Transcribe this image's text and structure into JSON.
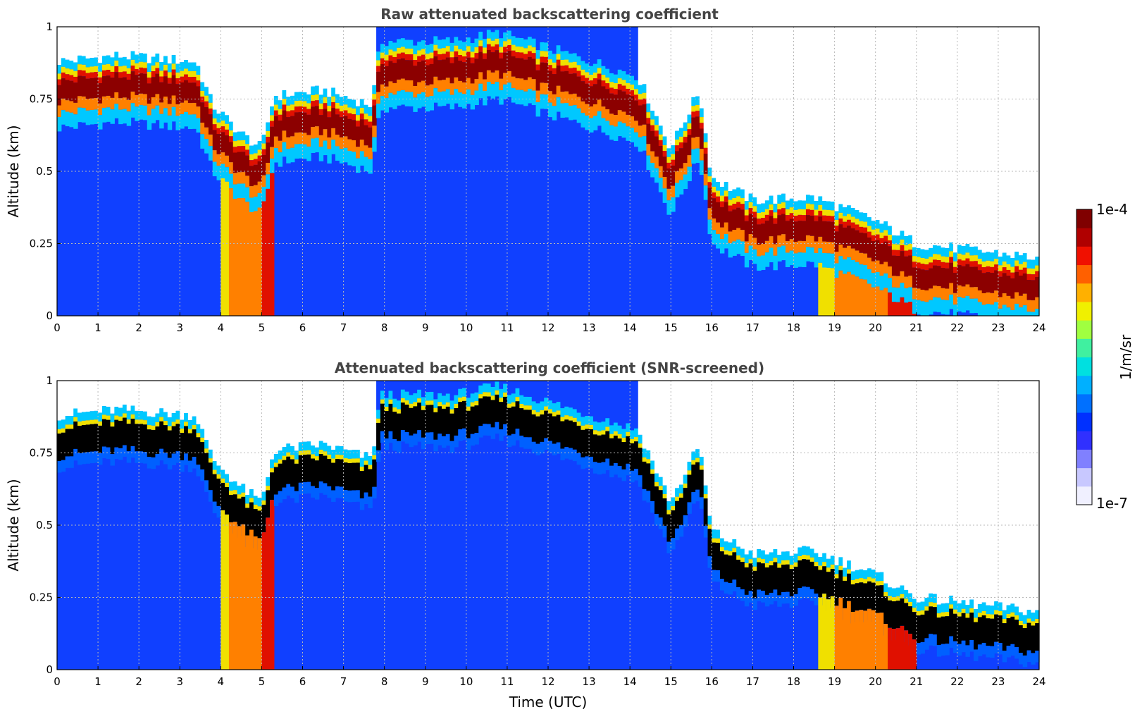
{
  "chart_data": [
    {
      "type": "heatmap",
      "title": "Raw attenuated backscattering coefficient",
      "xlabel": "",
      "ylabel": "Altitude (km)",
      "xlim": [
        0,
        24
      ],
      "ylim": [
        0,
        1
      ],
      "x_ticks": [
        0,
        1,
        2,
        3,
        4,
        5,
        6,
        7,
        8,
        9,
        10,
        11,
        12,
        13,
        14,
        15,
        16,
        17,
        18,
        19,
        20,
        21,
        22,
        23,
        24
      ],
      "y_ticks": [
        0,
        0.25,
        0.5,
        0.75,
        1
      ],
      "y_tick_labels": [
        "0",
        "0.25",
        "0.5",
        "0.75",
        "1"
      ],
      "grid": true,
      "log_color_scale": true,
      "layer_top_km": [
        {
          "x": 0.0,
          "y": 0.85
        },
        {
          "x": 1.5,
          "y": 0.87
        },
        {
          "x": 3.4,
          "y": 0.85
        },
        {
          "x": 3.8,
          "y": 0.7
        },
        {
          "x": 4.5,
          "y": 0.6
        },
        {
          "x": 5.0,
          "y": 0.55
        },
        {
          "x": 5.3,
          "y": 0.73
        },
        {
          "x": 6.5,
          "y": 0.75
        },
        {
          "x": 7.7,
          "y": 0.7
        },
        {
          "x": 7.9,
          "y": 0.92
        },
        {
          "x": 9.7,
          "y": 0.92
        },
        {
          "x": 10.8,
          "y": 0.95
        },
        {
          "x": 14.2,
          "y": 0.8
        },
        {
          "x": 15.0,
          "y": 0.55
        },
        {
          "x": 15.7,
          "y": 0.75
        },
        {
          "x": 16.0,
          "y": 0.45
        },
        {
          "x": 17.0,
          "y": 0.37
        },
        {
          "x": 18.5,
          "y": 0.38
        },
        {
          "x": 20.0,
          "y": 0.3
        },
        {
          "x": 21.0,
          "y": 0.22
        },
        {
          "x": 24.0,
          "y": 0.17
        }
      ],
      "surface_plume_intervals_utc": [
        [
          4.0,
          5.3
        ],
        [
          18.6,
          21.0
        ]
      ]
    },
    {
      "type": "heatmap",
      "title": "Attenuated backscattering coefficient (SNR-screened)",
      "xlabel": "Time (UTC)",
      "ylabel": "Altitude (km)",
      "xlim": [
        0,
        24
      ],
      "ylim": [
        0,
        1
      ],
      "x_ticks": [
        0,
        1,
        2,
        3,
        4,
        5,
        6,
        7,
        8,
        9,
        10,
        11,
        12,
        13,
        14,
        15,
        16,
        17,
        18,
        19,
        20,
        21,
        22,
        23,
        24
      ],
      "y_ticks": [
        0,
        0.25,
        0.5,
        0.75,
        1
      ],
      "y_tick_labels": [
        "0",
        "0.25",
        "0.5",
        "0.75",
        "1"
      ],
      "grid": true,
      "log_color_scale": true,
      "saturated_color": "#000000"
    }
  ],
  "colorbar": {
    "label": "1/m/sr",
    "max_label": "1e-4",
    "min_label": "1e-7",
    "colormap": [
      "#f0f0ff",
      "#c8c8ff",
      "#8080ff",
      "#3030ff",
      "#0030ff",
      "#0070ff",
      "#00b0ff",
      "#00e0e0",
      "#40f0a0",
      "#a0ff40",
      "#f0f000",
      "#ffb000",
      "#ff6000",
      "#f01000",
      "#b00000",
      "#800000"
    ]
  },
  "colors": {
    "background_blue": "#1040ff",
    "mid_blue": "#0060ff",
    "cyan": "#00c8ff",
    "yellow": "#f0e000",
    "orange": "#ff8000",
    "red": "#e01000",
    "dark_red": "#8c0000",
    "black": "#000000",
    "faint": "#e6e6fa"
  }
}
